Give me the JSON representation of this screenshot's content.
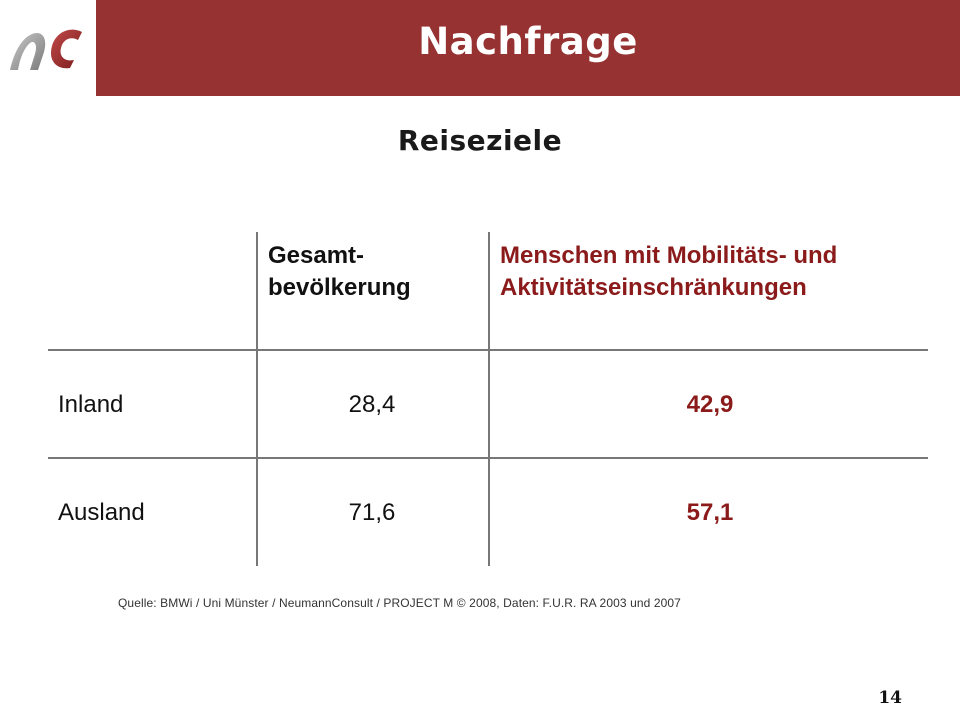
{
  "header": {
    "title": "Nachfrage",
    "logo_icon": "nc-logo-icon",
    "background_color": "#963232"
  },
  "subtitle": "Reiseziele",
  "table": {
    "columns": [
      "Gesamt-\nbevölkerung",
      "Menschen mit Mobilitäts- und Aktivitätseinschränkungen"
    ],
    "col_gesamt_line1": "Gesamt-",
    "col_gesamt_line2": "bevölkerung",
    "col_mob_line1": "Menschen mit Mobilitäts- und",
    "col_mob_line2": "Aktivitätseinschränkungen",
    "rows": [
      {
        "label": "Inland",
        "gesamt": "28,4",
        "mobilitaet": "42,9"
      },
      {
        "label": "Ausland",
        "gesamt": "71,6",
        "mobilitaet": "57,1"
      }
    ],
    "accent_color": "#8b1a1a"
  },
  "source": "Quelle: BMWi / Uni Münster / NeumannConsult  /  PROJECT M © 2008,  Daten: F.U.R. RA 2003 und 2007",
  "page_number": "14"
}
